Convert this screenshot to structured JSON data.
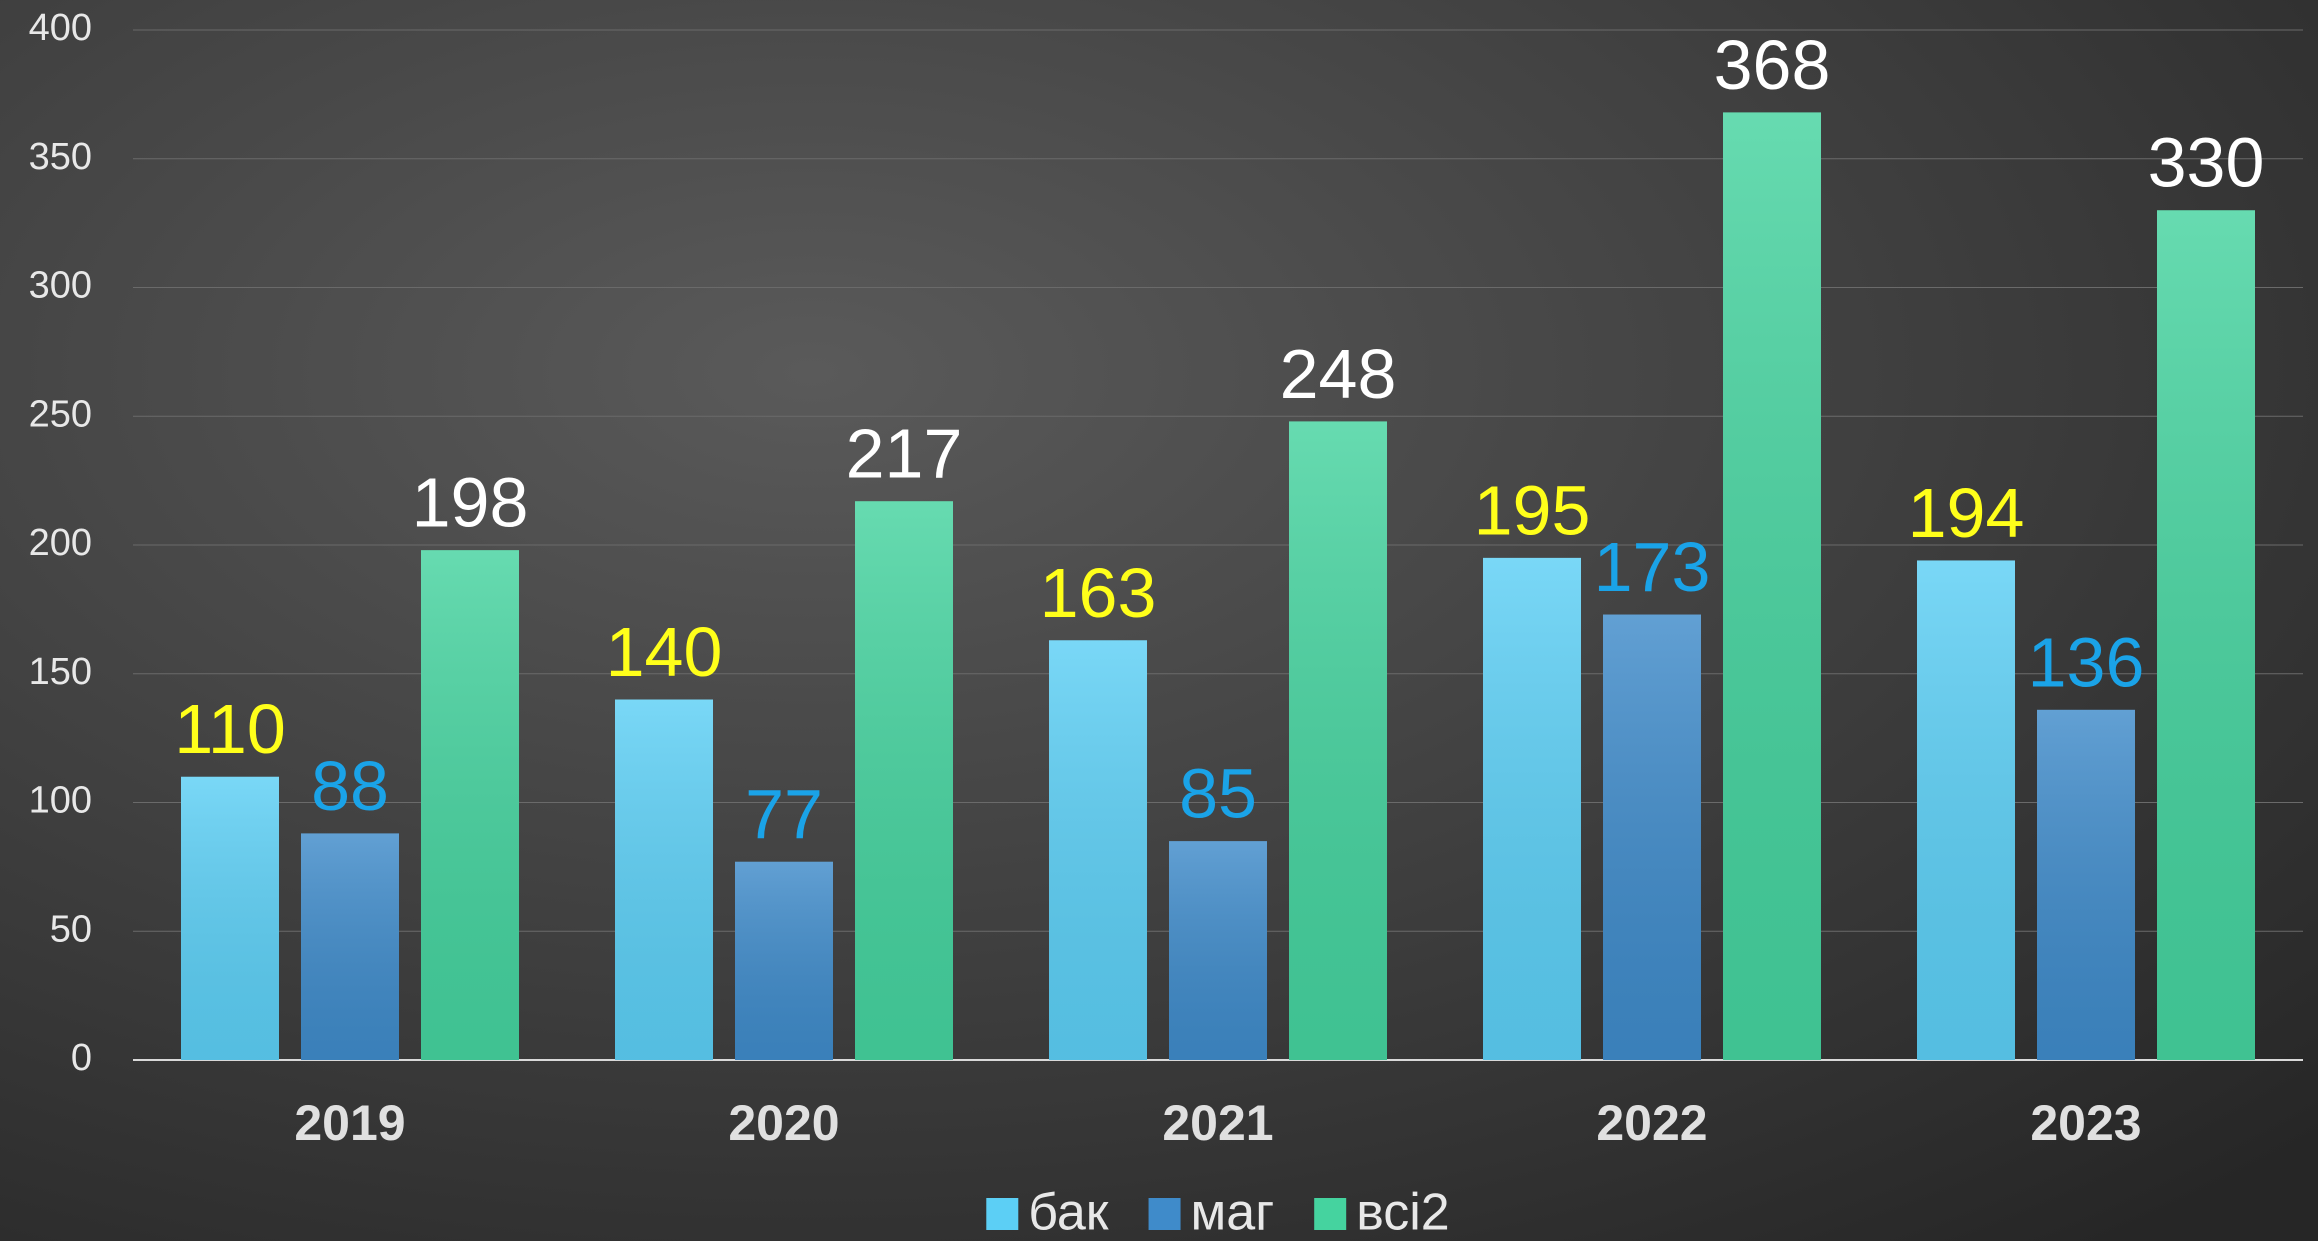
{
  "chart_data": {
    "type": "bar",
    "categories": [
      "2019",
      "2020",
      "2021",
      "2022",
      "2023"
    ],
    "series": [
      {
        "name": "бак",
        "color": "#5ccff5",
        "label_color": "#ffff1a",
        "values": [
          110,
          140,
          163,
          195,
          194
        ]
      },
      {
        "name": "маг",
        "color": "#3f8bca",
        "label_color": "#1aa3e8",
        "values": [
          88,
          77,
          85,
          173,
          136
        ]
      },
      {
        "name": "всі2",
        "color": "#45d39f",
        "label_color": "#ffffff",
        "values": [
          198,
          217,
          248,
          368,
          330
        ]
      }
    ],
    "ylim": [
      0,
      400
    ],
    "yticks": [
      0,
      50,
      100,
      150,
      200,
      250,
      300,
      350,
      400
    ],
    "grid": true,
    "legend": "bottom"
  }
}
